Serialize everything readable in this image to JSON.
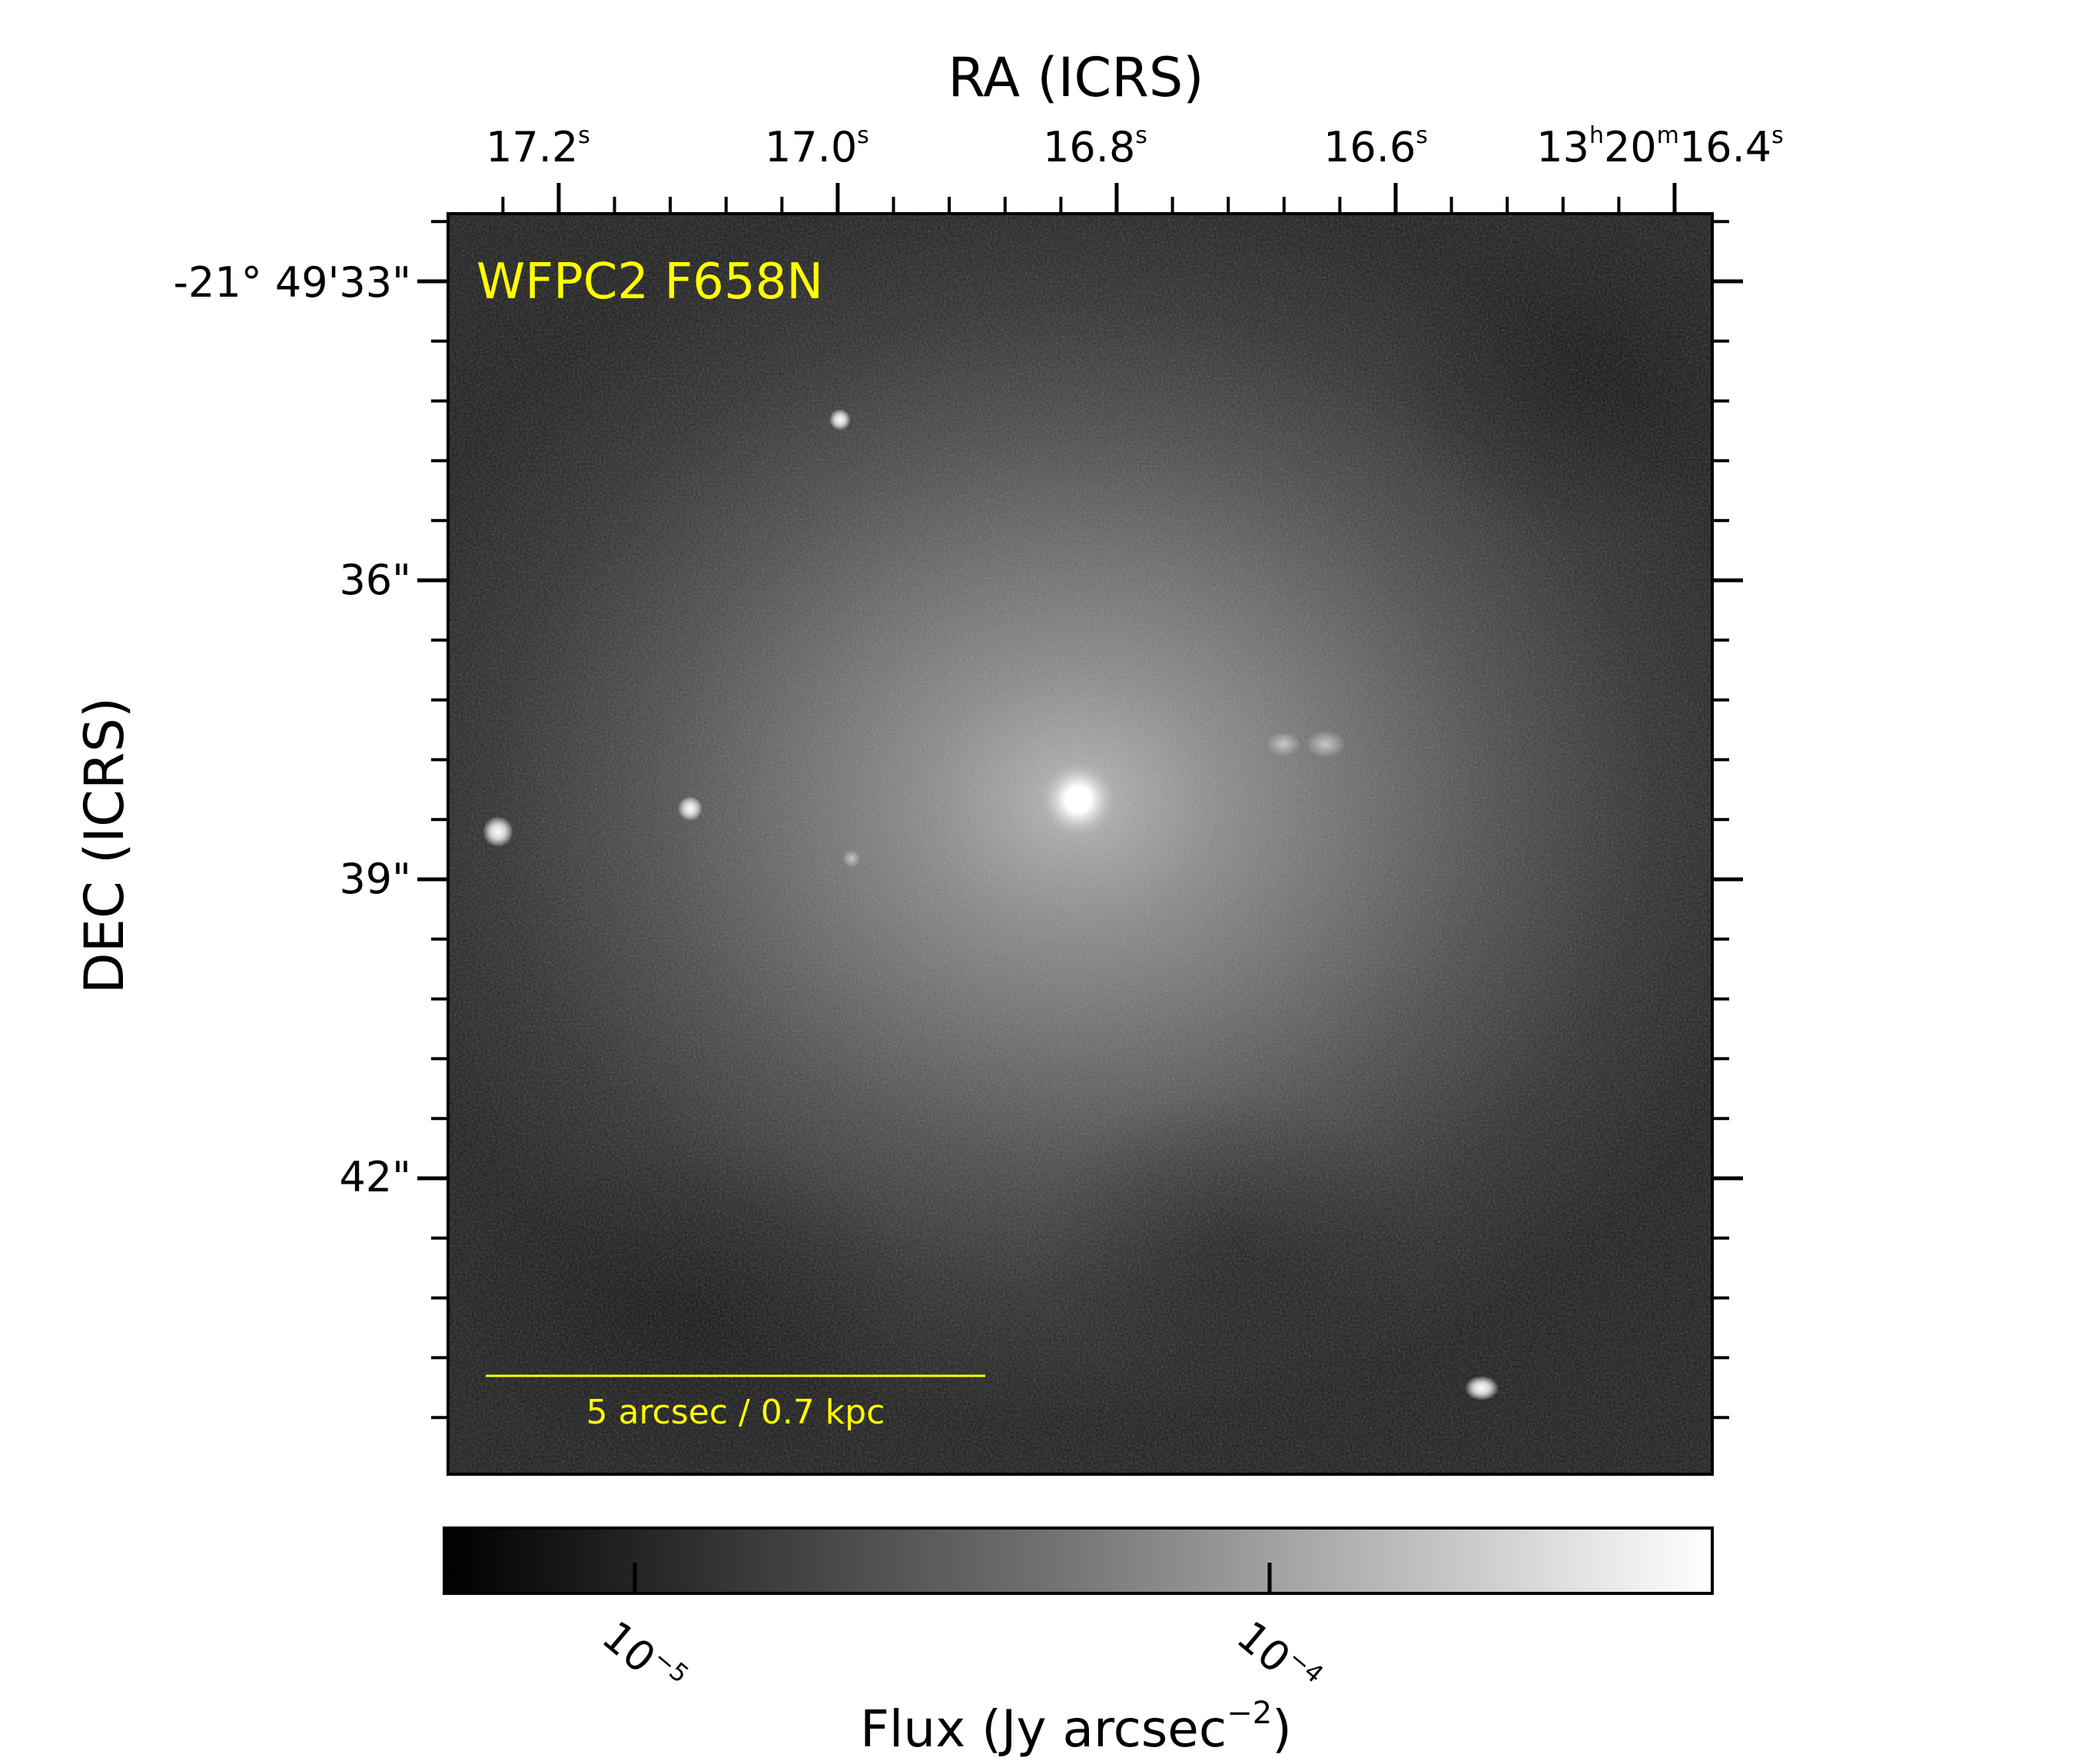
{
  "figure": {
    "x_axis_title": "RA (ICRS)",
    "y_axis_title": "DEC (ICRS)",
    "filter_label": "WFPC2 F658N",
    "scale_bar_label": "5 arcsec / 0.7 kpc",
    "colorbar_label": "Flux (Jy arcsec",
    "colorbar_label_exponent": "−2",
    "colorbar_label_close": ")",
    "colors": {
      "annotation": "#ffff00",
      "axes": "#000000",
      "background": "#ffffff"
    }
  },
  "ra_ticks": [
    {
      "main": "17.2",
      "sup": "s",
      "value_s": 17.2
    },
    {
      "main": "17.0",
      "sup": "s",
      "value_s": 17.0
    },
    {
      "main": "16.8",
      "sup": "s",
      "value_s": 16.8
    },
    {
      "main": "16.6",
      "sup": "s",
      "value_s": 16.6
    },
    {
      "main": "13",
      "sup": "h",
      "main2": "20",
      "sup2": "m",
      "main3": "16.4",
      "sup3": "s",
      "value_s": 16.4
    }
  ],
  "dec_ticks": [
    {
      "label": "-21° 49'33\"",
      "value_arcsec": 33
    },
    {
      "label": "36\"",
      "value_arcsec": 36
    },
    {
      "label": "39\"",
      "value_arcsec": 39
    },
    {
      "label": "42\"",
      "value_arcsec": 42
    }
  ],
  "colorbar_ticks": [
    {
      "base": "10",
      "exponent": "−5",
      "value": 1e-05
    },
    {
      "base": "10",
      "exponent": "−4",
      "value": 0.0001
    }
  ],
  "image_features": {
    "nucleus": "bright compact core",
    "sources": [
      "point source left",
      "point source left-center",
      "faint knots right of core",
      "point source lower right"
    ]
  }
}
